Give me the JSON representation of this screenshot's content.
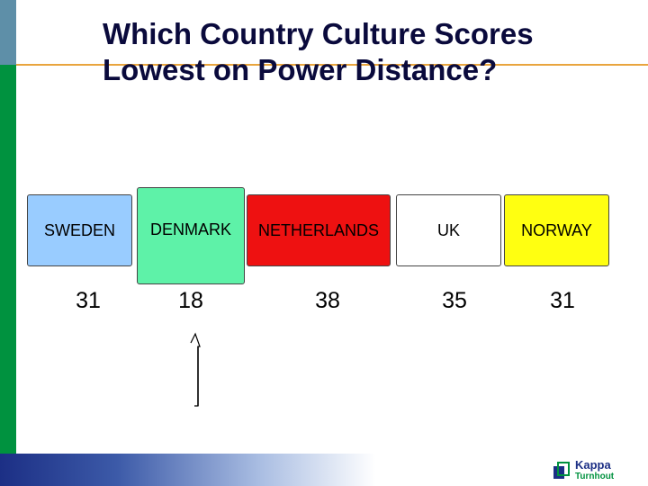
{
  "slide": {
    "title_line1": "Which Country Culture Scores",
    "title_line2": "Lowest on Power Distance?"
  },
  "countries": [
    {
      "name": "SWEDEN",
      "score": "31",
      "color": "#99ccff"
    },
    {
      "name": "DENMARK",
      "score": "18",
      "color": "#5ef2a8"
    },
    {
      "name": "NETHERLANDS",
      "score": "38",
      "color": "#ee1111"
    },
    {
      "name": "UK",
      "score": "35",
      "color": "#ffffff"
    },
    {
      "name": "NORWAY",
      "score": "31",
      "color": "#ffff11"
    }
  ],
  "logo": {
    "brand": "Kappa",
    "sub": "Turnhout"
  },
  "colors": {
    "accent": "#e9a53e",
    "sidebar_green": "#00923f",
    "sidebar_blue": "#5e8fa8",
    "footer_blue": "#1c2f85"
  }
}
